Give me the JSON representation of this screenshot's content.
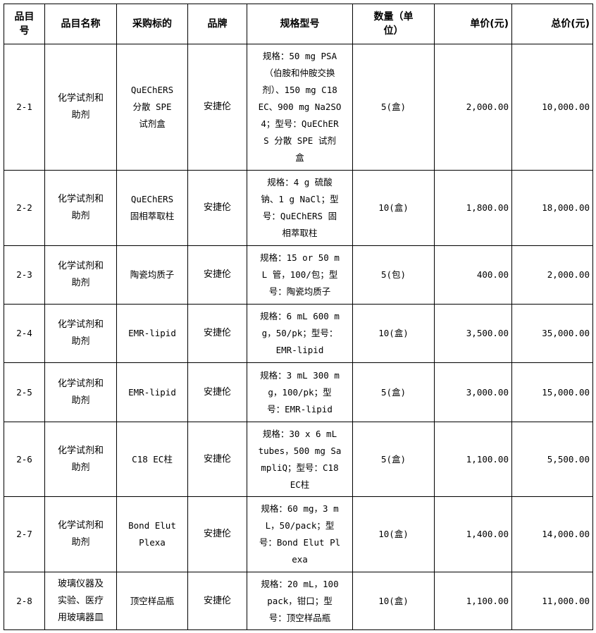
{
  "headers": [
    "品目\n号",
    "品目名称",
    "采购标的",
    "品牌",
    "规格型号",
    "数量（单\n位）",
    "单价(元)",
    "总价(元)"
  ],
  "rows": [
    {
      "no": "2-1",
      "category": "化学试剂和\n助剂",
      "item": "QuEChERS\n分散 SPE\n试剂盒",
      "brand": "安捷伦",
      "spec": "规格：50 mg PSA\n（伯胺和仲胺交换\n剂）、150 mg C18\nEC、900 mg Na2SO\n4；型号：QuEChER\nS 分散 SPE 试剂\n盒",
      "qty": "5(盒)",
      "unit_price": "2,000.00",
      "total": "10,000.00"
    },
    {
      "no": "2-2",
      "category": "化学试剂和\n助剂",
      "item": "QuEChERS\n固相萃取柱",
      "brand": "安捷伦",
      "spec": "规格：4 g 硫酸\n钠、1 g NaCl；型\n号：QuEChERS 固\n相萃取柱",
      "qty": "10(盒)",
      "unit_price": "1,800.00",
      "total": "18,000.00"
    },
    {
      "no": "2-3",
      "category": "化学试剂和\n助剂",
      "item": "陶瓷均质子",
      "brand": "安捷伦",
      "spec": "规格：15 or 50 m\nL 管，100/包；型\n号：陶瓷均质子",
      "qty": "5(包)",
      "unit_price": "400.00",
      "total": "2,000.00"
    },
    {
      "no": "2-4",
      "category": "化学试剂和\n助剂",
      "item": "EMR-lipid",
      "brand": "安捷伦",
      "spec": "规格：6 mL 600 m\ng，50/pk；型号：\nEMR-lipid",
      "qty": "10(盒)",
      "unit_price": "3,500.00",
      "total": "35,000.00"
    },
    {
      "no": "2-5",
      "category": "化学试剂和\n助剂",
      "item": "EMR-lipid",
      "brand": "安捷伦",
      "spec": "规格：3 mL 300 m\ng，100/pk；型\n号：EMR-lipid",
      "qty": "5(盒)",
      "unit_price": "3,000.00",
      "total": "15,000.00"
    },
    {
      "no": "2-6",
      "category": "化学试剂和\n助剂",
      "item": "C18 EC柱",
      "brand": "安捷伦",
      "spec": "规格：30 x 6 mL\ntubes，500 mg Sa\nmpliQ；型号：C18\nEC柱",
      "qty": "5(盒)",
      "unit_price": "1,100.00",
      "total": "5,500.00"
    },
    {
      "no": "2-7",
      "category": "化学试剂和\n助剂",
      "item": "Bond Elut\nPlexa",
      "brand": "安捷伦",
      "spec": "规格：60 mg，3 m\nL，50/pack；型\n号：Bond Elut Pl\nexa",
      "qty": "10(盒)",
      "unit_price": "1,400.00",
      "total": "14,000.00"
    },
    {
      "no": "2-8",
      "category": "玻璃仪器及\n实验、医疗\n用玻璃器皿",
      "item": "顶空样品瓶",
      "brand": "安捷伦",
      "spec": "规格：20 mL，100\npack，钳口；型\n号：顶空样品瓶",
      "qty": "10(盒)",
      "unit_price": "1,100.00",
      "total": "11,000.00"
    }
  ]
}
